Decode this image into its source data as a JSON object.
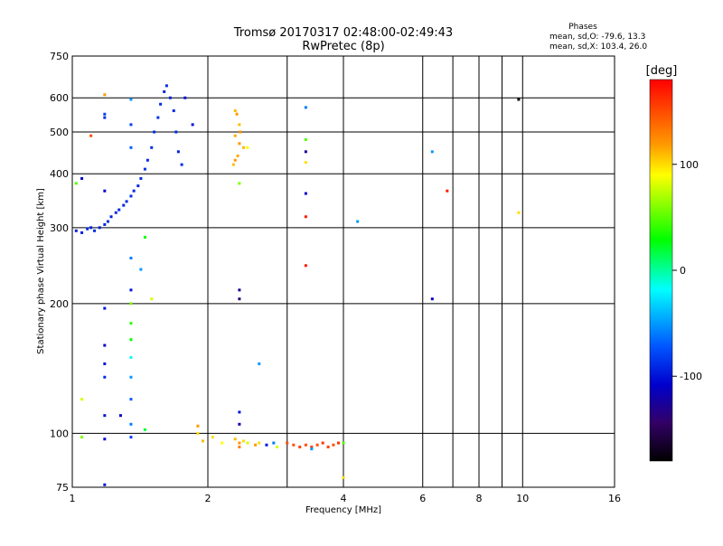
{
  "chart_data": {
    "type": "scatter",
    "title": "Tromsø 20170317 02:48:00-02:49:43",
    "subtitle": "RwPretec (8p)",
    "xlabel": "Frequency [MHz]",
    "ylabel": "Stationary phase Virtual Height [km]",
    "x_scale": "log2",
    "y_scale": "log",
    "xlim": [
      1,
      16
    ],
    "ylim": [
      75,
      750
    ],
    "x_ticks": [
      1,
      2,
      4,
      6,
      8,
      10,
      16
    ],
    "x_tick_labels": [
      "1",
      "2",
      "4",
      "6",
      "8",
      "10",
      "16"
    ],
    "x_grid": [
      1,
      2,
      3,
      4,
      6,
      7,
      8,
      9,
      10,
      16
    ],
    "y_ticks": [
      75,
      100,
      200,
      300,
      400,
      500,
      600,
      750
    ],
    "y_tick_labels": [
      "75",
      "100",
      "200",
      "300",
      "400",
      "500",
      "600",
      "750"
    ],
    "grid": true,
    "phase_info": {
      "title": "Phases",
      "line1": "mean, sd,O: -79.6, 13.3",
      "line2": "mean, sd,X: 103.4, 26.0"
    },
    "colorbar": {
      "label": "[deg]",
      "range": [
        -180,
        180
      ],
      "ticks": [
        100,
        0,
        -100
      ],
      "tick_labels": [
        "100",
        "0",
        "-100"
      ]
    },
    "series": [
      {
        "points": [
          [
            1.02,
            295,
            -95
          ],
          [
            1.05,
            292,
            -95
          ],
          [
            1.08,
            298,
            -90
          ],
          [
            1.1,
            300,
            -95
          ],
          [
            1.12,
            295,
            -90
          ],
          [
            1.15,
            300,
            -95
          ],
          [
            1.18,
            305,
            -95
          ],
          [
            1.2,
            310,
            -90
          ],
          [
            1.22,
            318,
            -95
          ],
          [
            1.25,
            325,
            -90
          ],
          [
            1.27,
            330,
            -90
          ],
          [
            1.3,
            338,
            -92
          ],
          [
            1.32,
            345,
            -90
          ],
          [
            1.35,
            355,
            -88
          ],
          [
            1.37,
            365,
            -90
          ],
          [
            1.4,
            375,
            -92
          ],
          [
            1.42,
            390,
            -90
          ],
          [
            1.45,
            410,
            -88
          ],
          [
            1.47,
            430,
            -90
          ],
          [
            1.5,
            460,
            -90
          ],
          [
            1.52,
            500,
            -90
          ],
          [
            1.55,
            540,
            -88
          ],
          [
            1.57,
            580,
            -90
          ],
          [
            1.6,
            620,
            -92
          ],
          [
            1.62,
            640,
            -90
          ],
          [
            1.65,
            600,
            -95
          ],
          [
            1.68,
            560,
            -90
          ],
          [
            1.7,
            500,
            -90
          ],
          [
            1.72,
            450,
            -95
          ],
          [
            1.75,
            420,
            -90
          ],
          [
            1.78,
            600,
            -100
          ],
          [
            1.85,
            520,
            -100
          ],
          [
            1.05,
            390,
            -110
          ],
          [
            1.18,
            365,
            -110
          ],
          [
            1.18,
            540,
            -90
          ],
          [
            1.18,
            550,
            -80
          ],
          [
            1.18,
            195,
            -100
          ],
          [
            1.18,
            160,
            -110
          ],
          [
            1.18,
            145,
            -100
          ],
          [
            1.18,
            135,
            -90
          ],
          [
            1.18,
            110,
            -100
          ],
          [
            1.18,
            97,
            -105
          ],
          [
            1.18,
            76,
            -100
          ],
          [
            1.28,
            110,
            -110
          ],
          [
            1.05,
            98,
            60
          ],
          [
            1.05,
            120,
            80
          ],
          [
            1.02,
            380,
            50
          ],
          [
            1.1,
            490,
            150
          ],
          [
            1.18,
            610,
            120
          ],
          [
            1.35,
            595,
            -50
          ],
          [
            1.35,
            520,
            -80
          ],
          [
            1.35,
            460,
            -70
          ],
          [
            1.35,
            255,
            -60
          ],
          [
            1.35,
            215,
            -100
          ],
          [
            1.35,
            200,
            60
          ],
          [
            1.35,
            180,
            40
          ],
          [
            1.35,
            165,
            30
          ],
          [
            1.35,
            150,
            -20
          ],
          [
            1.35,
            135,
            -50
          ],
          [
            1.35,
            120,
            -70
          ],
          [
            1.35,
            105,
            -60
          ],
          [
            1.35,
            98,
            -80
          ],
          [
            1.42,
            240,
            -50
          ],
          [
            1.45,
            285,
            30
          ],
          [
            1.5,
            205,
            80
          ],
          [
            1.45,
            102,
            20
          ],
          [
            1.9,
            100,
            100
          ],
          [
            1.9,
            104,
            120
          ],
          [
            1.95,
            96,
            110
          ],
          [
            2.05,
            98,
            100
          ],
          [
            2.15,
            95,
            90
          ],
          [
            2.3,
            560,
            110
          ],
          [
            2.32,
            550,
            120
          ],
          [
            2.35,
            520,
            110
          ],
          [
            2.3,
            490,
            115
          ],
          [
            2.35,
            470,
            120
          ],
          [
            2.4,
            460,
            110
          ],
          [
            2.33,
            440,
            115
          ],
          [
            2.28,
            420,
            110
          ],
          [
            2.36,
            500,
            125
          ],
          [
            2.3,
            430,
            120
          ],
          [
            2.35,
            380,
            60
          ],
          [
            2.45,
            460,
            90
          ],
          [
            2.3,
            97,
            110
          ],
          [
            2.35,
            95,
            120
          ],
          [
            2.4,
            96,
            100
          ],
          [
            2.45,
            95,
            80
          ],
          [
            2.35,
            93,
            130
          ],
          [
            2.55,
            94,
            120
          ],
          [
            2.6,
            95,
            100
          ],
          [
            2.7,
            94,
            -100
          ],
          [
            2.8,
            95,
            -60
          ],
          [
            2.85,
            93,
            80
          ],
          [
            2.35,
            215,
            -130
          ],
          [
            2.35,
            205,
            -140
          ],
          [
            2.35,
            112,
            -100
          ],
          [
            2.35,
            105,
            -120
          ],
          [
            2.6,
            145,
            -50
          ],
          [
            3.0,
            95,
            150
          ],
          [
            3.1,
            94,
            150
          ],
          [
            3.2,
            93,
            155
          ],
          [
            3.3,
            94,
            150
          ],
          [
            3.4,
            93,
            155
          ],
          [
            3.5,
            94,
            150
          ],
          [
            3.6,
            95,
            160
          ],
          [
            3.7,
            93,
            155
          ],
          [
            3.8,
            94,
            150
          ],
          [
            3.9,
            95,
            160
          ],
          [
            4.0,
            95,
            50
          ],
          [
            4.0,
            79,
            100
          ],
          [
            3.4,
            92,
            -50
          ],
          [
            3.3,
            570,
            -60
          ],
          [
            3.3,
            480,
            50
          ],
          [
            3.3,
            450,
            -130
          ],
          [
            3.3,
            425,
            100
          ],
          [
            3.3,
            360,
            -110
          ],
          [
            3.3,
            318,
            170
          ],
          [
            3.3,
            245,
            170
          ],
          [
            4.3,
            310,
            -50
          ],
          [
            6.3,
            450,
            -50
          ],
          [
            6.3,
            205,
            -110
          ],
          [
            6.8,
            365,
            170
          ],
          [
            9.8,
            595,
            -180
          ],
          [
            9.8,
            325,
            100
          ]
        ]
      }
    ]
  }
}
